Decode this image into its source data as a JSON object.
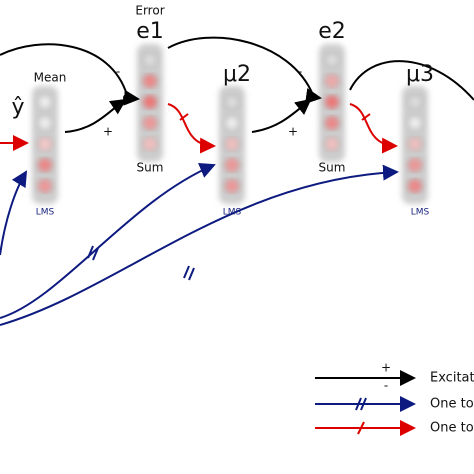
{
  "labels": {
    "error": "Error",
    "e1": "e1",
    "e2": "e2",
    "mean": "Mean",
    "y_hat": "ŷ",
    "mu2": "μ2",
    "mu3": "μ3",
    "sum1": "Sum",
    "sum2": "Sum",
    "lms1": "LMS",
    "lms2": "LMS",
    "lms3": "LMS",
    "signs": [
      "-",
      "+",
      "-",
      "+"
    ]
  },
  "legend": [
    {
      "label": "Excitat",
      "signs": [
        "+",
        "-"
      ]
    },
    {
      "label": "One to"
    },
    {
      "label": "One to"
    }
  ]
}
